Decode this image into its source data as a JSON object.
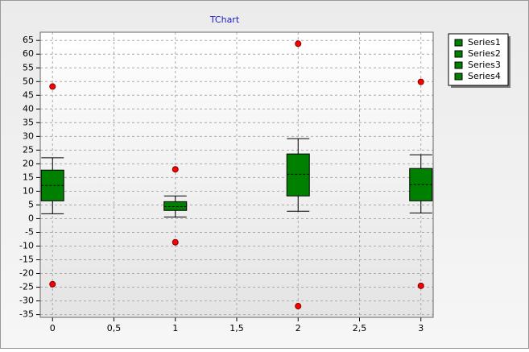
{
  "chart_data": {
    "type": "box",
    "title": "TChart",
    "xlim": [
      -0.1,
      3.1
    ],
    "xticks": [
      0,
      {
        "value": 0.5,
        "label": "0,5"
      },
      1,
      {
        "value": 1.5,
        "label": "1,5"
      },
      2,
      {
        "value": 2.5,
        "label": "2,5"
      },
      3
    ],
    "ylim": [
      -36,
      68
    ],
    "yticks": [
      -35,
      -30,
      -25,
      -20,
      -15,
      -10,
      -5,
      0,
      5,
      10,
      15,
      20,
      25,
      30,
      35,
      40,
      45,
      50,
      55,
      60,
      65
    ],
    "grid": true,
    "legend": "top-right",
    "outlier_color": "#ff0000",
    "series": [
      {
        "name": "Series1",
        "color": "#008000",
        "x": 0,
        "whisker_low": 1.8,
        "q1": 6.5,
        "median": 12.1,
        "q3": 17.7,
        "whisker_high": 22.2,
        "outliers": [
          48.2,
          -23.9
        ]
      },
      {
        "name": "Series2",
        "color": "#008000",
        "x": 1,
        "whisker_low": 0.6,
        "q1": 3.0,
        "median": 4.4,
        "q3": 6.2,
        "whisker_high": 8.3,
        "outliers": [
          18.0,
          -8.6
        ]
      },
      {
        "name": "Series3",
        "color": "#008000",
        "x": 2,
        "whisker_low": 2.7,
        "q1": 8.3,
        "median": 16.2,
        "q3": 23.6,
        "whisker_high": 29.2,
        "outliers": [
          63.8,
          -31.9
        ]
      },
      {
        "name": "Series4",
        "color": "#008000",
        "x": 3,
        "whisker_low": 2.1,
        "q1": 6.5,
        "median": 12.4,
        "q3": 18.3,
        "whisker_high": 23.3,
        "outliers": [
          49.9,
          -24.5
        ]
      }
    ]
  }
}
